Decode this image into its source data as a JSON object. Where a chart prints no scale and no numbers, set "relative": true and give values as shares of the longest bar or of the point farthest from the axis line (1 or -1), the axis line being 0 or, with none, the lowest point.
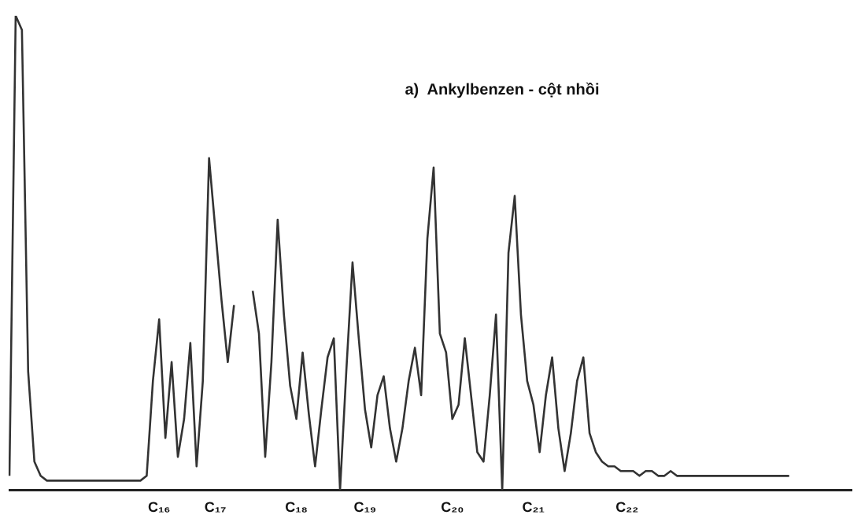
{
  "chart_data": {
    "type": "line",
    "title": "a)  Ankylbenzen - cột nhồi",
    "relative": true,
    "grid": false,
    "legend": false,
    "marker": "none",
    "line_style": "solid",
    "categories": [
      null,
      null,
      null,
      null,
      null,
      null,
      null,
      null,
      null,
      null,
      null,
      null,
      null,
      null,
      null,
      null,
      null,
      null,
      null,
      null,
      null,
      null,
      null,
      null,
      "C₁₆",
      null,
      null,
      null,
      null,
      null,
      null,
      null,
      null,
      "C₁₇",
      null,
      null,
      null,
      null,
      null,
      null,
      null,
      null,
      null,
      null,
      null,
      null,
      "C₁₈",
      null,
      null,
      null,
      null,
      null,
      null,
      null,
      null,
      null,
      null,
      "C₁₉",
      null,
      null,
      null,
      null,
      null,
      null,
      null,
      null,
      null,
      null,
      null,
      null,
      null,
      "C₂₀",
      null,
      null,
      null,
      null,
      null,
      null,
      null,
      null,
      null,
      null,
      null,
      null,
      "C₂₁",
      null,
      null,
      null,
      null,
      null,
      null,
      null,
      null,
      null,
      null,
      null,
      null,
      null,
      null,
      "C₂₂",
      null,
      null,
      null,
      null,
      null,
      null,
      null,
      null,
      null,
      null,
      null,
      null,
      null,
      null,
      null,
      null,
      null,
      null,
      null,
      null,
      null,
      null,
      null,
      null,
      null,
      null,
      null,
      null,
      null,
      null,
      null,
      null,
      null,
      null,
      null,
      null
    ],
    "series": [
      {
        "color": "#333333",
        "values": [
          0.03,
          1.0,
          0.97,
          0.25,
          0.06,
          0.03,
          0.02,
          0.02,
          0.02,
          0.02,
          0.02,
          0.02,
          0.02,
          0.02,
          0.02,
          0.02,
          0.02,
          0.02,
          0.02,
          0.02,
          0.02,
          0.02,
          0.03,
          0.23,
          0.36,
          0.11,
          0.27,
          0.07,
          0.15,
          0.31,
          0.05,
          0.23,
          0.7,
          0.55,
          0.4,
          0.27,
          0.39,
          null,
          null,
          0.42,
          0.33,
          0.07,
          0.27,
          0.57,
          0.37,
          0.22,
          0.15,
          0.29,
          0.16,
          0.05,
          0.17,
          0.28,
          0.32,
          0,
          0.25,
          0.48,
          0.32,
          0.17,
          0.09,
          0.2,
          0.24,
          0.13,
          0.06,
          0.13,
          0.23,
          0.3,
          0.2,
          0.53,
          0.68,
          0.33,
          0.29,
          0.15,
          0.18,
          0.32,
          0.2,
          0.08,
          0.06,
          0.2,
          0.37,
          0,
          0.5,
          0.62,
          0.37,
          0.23,
          0.18,
          0.08,
          0.2,
          0.28,
          0.13,
          0.04,
          0.12,
          0.23,
          0.28,
          0.12,
          0.08,
          0.06,
          0.05,
          0.05,
          0.04,
          0.04,
          0.04,
          0.03,
          0.04,
          0.04,
          0.03,
          0.03,
          0.04,
          0.03,
          0.03,
          0.03,
          0.03,
          0.03,
          0.03,
          0.03,
          0.03,
          0.03,
          0.03,
          0.03,
          0.03,
          0.03,
          0.03,
          0.03,
          0.03,
          0.03,
          0.03,
          0.03,
          null,
          null,
          null,
          null,
          null,
          null,
          null,
          null,
          null,
          null
        ]
      }
    ]
  }
}
